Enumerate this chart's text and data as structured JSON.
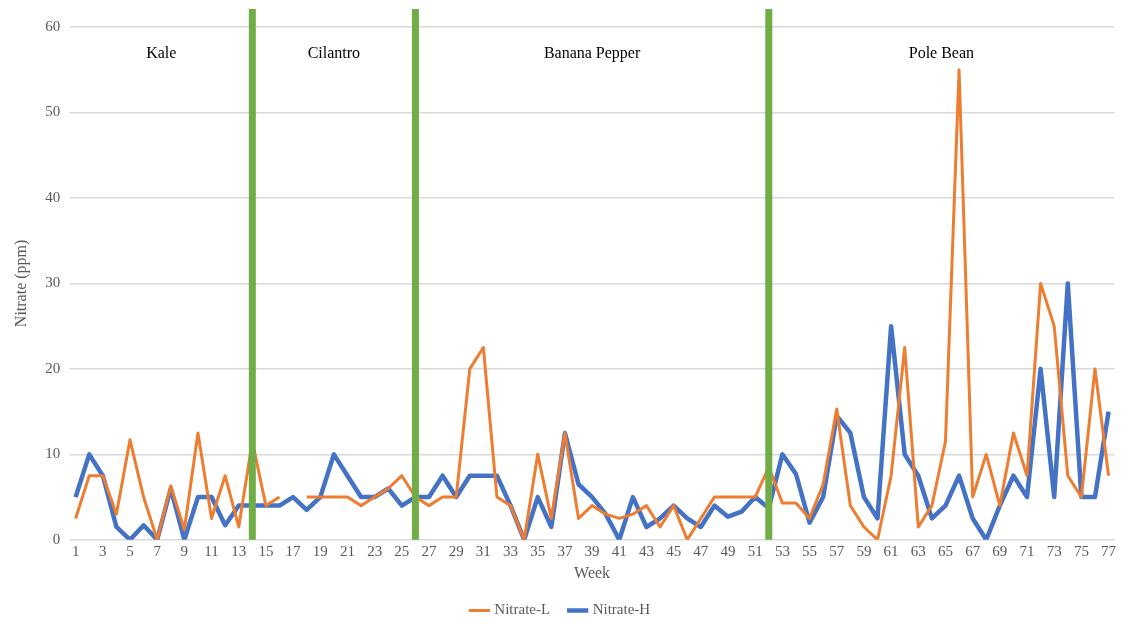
{
  "chart_data": {
    "type": "line",
    "xlabel": "Week",
    "ylabel": "Nitrate (ppm)",
    "x": [
      1,
      2,
      3,
      4,
      5,
      6,
      7,
      8,
      9,
      10,
      11,
      12,
      13,
      14,
      15,
      16,
      17,
      18,
      19,
      20,
      21,
      22,
      23,
      24,
      25,
      26,
      27,
      28,
      29,
      30,
      31,
      32,
      33,
      34,
      35,
      36,
      37,
      38,
      39,
      40,
      41,
      42,
      43,
      44,
      45,
      46,
      47,
      48,
      49,
      50,
      51,
      52,
      53,
      54,
      55,
      56,
      57,
      58,
      59,
      60,
      61,
      62,
      63,
      64,
      65,
      66,
      67,
      68,
      69,
      70,
      71,
      72,
      73,
      74,
      75,
      76,
      77
    ],
    "series": [
      {
        "name": "Nitrate-H",
        "color": "#4472c4",
        "values": [
          5,
          10,
          7.5,
          1.5,
          0,
          1.7,
          0,
          6,
          0,
          5,
          5,
          1.7,
          4,
          4,
          4,
          4,
          5,
          3.5,
          5,
          10,
          7.5,
          5,
          5,
          6,
          4,
          5,
          5,
          7.5,
          5,
          7.5,
          7.5,
          7.5,
          4,
          0,
          5,
          1.5,
          12.5,
          6.5,
          5,
          3,
          0,
          5,
          1.5,
          2.5,
          4,
          2.5,
          1.5,
          4,
          2.7,
          3.3,
          5,
          3.7,
          10,
          7.7,
          2,
          5,
          14.5,
          12.5,
          5,
          2.5,
          25,
          10,
          7.5,
          2.5,
          4,
          7.5,
          2.5,
          0,
          4,
          7.5,
          5,
          20,
          5,
          30,
          5,
          5,
          15
        ]
      },
      {
        "name": "Nitrate-L",
        "color": "#ed7d31",
        "values": [
          2.5,
          7.5,
          7.5,
          3,
          11.7,
          5,
          0,
          6.3,
          1.2,
          12.5,
          2.5,
          7.5,
          1.5,
          11.5,
          4,
          5,
          null,
          5,
          5,
          5,
          5,
          4,
          5,
          6,
          7.5,
          5,
          4,
          5,
          5,
          20,
          22.5,
          5,
          4,
          0,
          10,
          2.5,
          12.5,
          2.5,
          4,
          3,
          2.5,
          3,
          4,
          1.5,
          4,
          0,
          2.5,
          5,
          5,
          5,
          5,
          8.5,
          4.3,
          4.3,
          2.5,
          6.5,
          15.3,
          4,
          1.5,
          0,
          7.5,
          22.5,
          1.5,
          4,
          11.5,
          55,
          5,
          10,
          4,
          12.5,
          7.5,
          30,
          25,
          7.5,
          5,
          20,
          7.5
        ]
      }
    ],
    "xlim": [
      0.6,
      77.4
    ],
    "xticks": [
      1,
      3,
      5,
      7,
      9,
      11,
      13,
      15,
      17,
      19,
      21,
      23,
      25,
      27,
      29,
      31,
      33,
      35,
      37,
      39,
      41,
      43,
      45,
      47,
      49,
      51,
      53,
      55,
      57,
      59,
      61,
      63,
      65,
      67,
      69,
      71,
      73,
      75,
      77
    ],
    "ylim": [
      0,
      60
    ],
    "yticks": [
      0,
      10,
      20,
      30,
      40,
      50,
      60
    ],
    "ref_lines": [
      {
        "axis": "x",
        "value": 14,
        "color": "#70ad47"
      },
      {
        "axis": "x",
        "value": 26,
        "color": "#70ad47"
      },
      {
        "axis": "x",
        "value": 52,
        "color": "#70ad47"
      }
    ],
    "annotations": [
      "Kale",
      "Cilantro",
      "Banana Pepper",
      "Pole Bean"
    ],
    "grid": "y",
    "legend": "bottom",
    "marker": "none",
    "line_style": "solid"
  }
}
